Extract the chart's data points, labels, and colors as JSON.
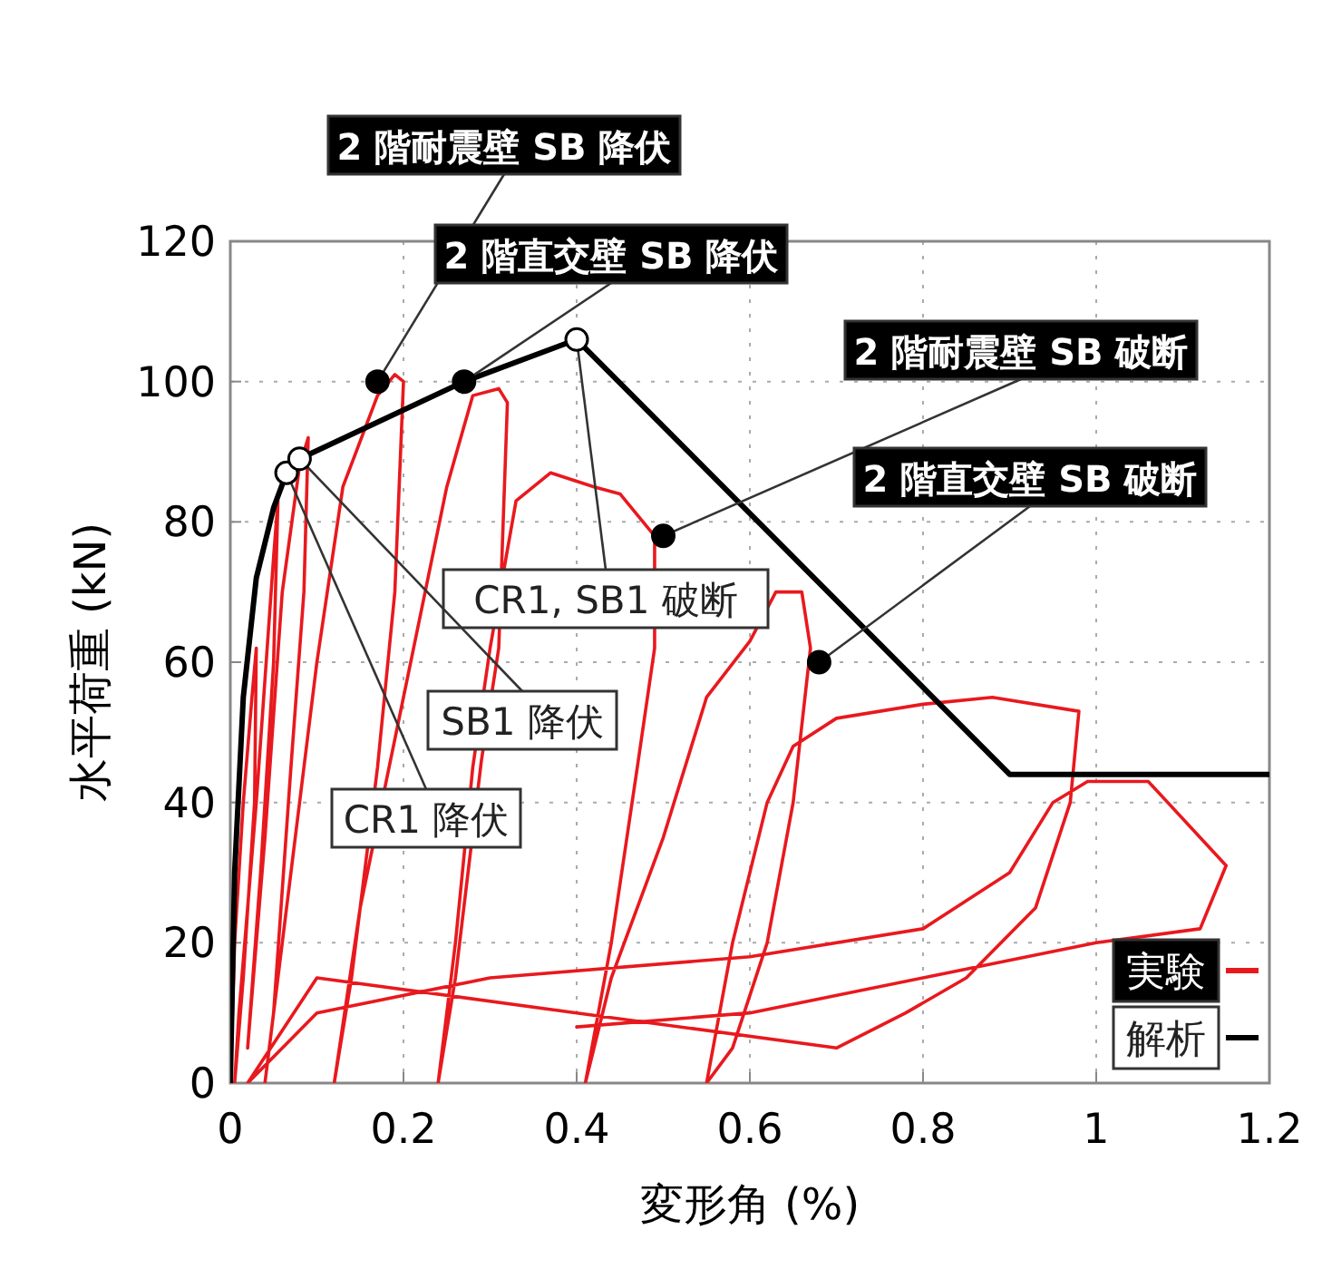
{
  "chart_data": {
    "type": "line",
    "xlabel": "変形角 (%)",
    "ylabel": "水平荷重 (kN)",
    "xlim": [
      0,
      1.2
    ],
    "ylim": [
      0,
      120
    ],
    "xticks": [
      0,
      0.2,
      0.4,
      0.6,
      0.8,
      1,
      1.2
    ],
    "yticks": [
      0,
      20,
      40,
      60,
      80,
      100,
      120
    ],
    "grid": true,
    "legend": "bottom right",
    "series": [
      {
        "name": "実験",
        "color": "#e8191e",
        "x": [
          0,
          0.005,
          0.015,
          0.025,
          0.03,
          0.028,
          0.015,
          0.005,
          0.01,
          0.03,
          0.05,
          0.055,
          0.05,
          0.035,
          0.02,
          0.04,
          0.06,
          0.08,
          0.09,
          0.085,
          0.07,
          0.05,
          0.04,
          0.07,
          0.1,
          0.13,
          0.17,
          0.19,
          0.2,
          0.19,
          0.17,
          0.14,
          0.12,
          0.15,
          0.2,
          0.25,
          0.28,
          0.31,
          0.32,
          0.31,
          0.29,
          0.26,
          0.24,
          0.26,
          0.28,
          0.3,
          0.33,
          0.37,
          0.42,
          0.45,
          0.49,
          0.49,
          0.47,
          0.44,
          0.41,
          0.44,
          0.5,
          0.55,
          0.6,
          0.63,
          0.66,
          0.67,
          0.65,
          0.62,
          0.58,
          0.55,
          0.58,
          0.62,
          0.65,
          0.7,
          0.8,
          0.88,
          0.98,
          0.97,
          0.93,
          0.85,
          0.78,
          0.7,
          0.4,
          0.1,
          0.02,
          0.1,
          0.3,
          0.6,
          0.8,
          0.9,
          0.95,
          0.99,
          1.06,
          1.15,
          1.12,
          1,
          0.8,
          0.6,
          0.4
        ],
        "values": [
          0,
          20,
          40,
          55,
          62,
          40,
          15,
          0,
          10,
          40,
          75,
          83,
          60,
          30,
          5,
          35,
          70,
          88,
          92,
          70,
          45,
          10,
          0,
          30,
          60,
          85,
          98,
          101,
          100,
          70,
          45,
          15,
          0,
          25,
          55,
          85,
          98,
          99,
          97,
          62,
          46,
          15,
          0,
          20,
          45,
          62,
          83,
          87,
          85,
          84,
          78,
          62,
          45,
          20,
          0,
          15,
          35,
          55,
          63,
          70,
          70,
          62,
          40,
          20,
          5,
          0,
          20,
          40,
          48,
          52,
          54,
          55,
          53,
          40,
          25,
          15,
          10,
          5,
          10,
          15,
          0,
          10,
          15,
          18,
          22,
          30,
          40,
          43,
          43,
          31,
          22,
          20,
          15,
          10,
          8
        ]
      },
      {
        "name": "解析",
        "color": "#000000",
        "x": [
          0,
          0.005,
          0.015,
          0.03,
          0.05,
          0.065,
          0.08,
          0.27,
          0.4,
          0.9,
          1.2
        ],
        "values": [
          0,
          30,
          55,
          72,
          82,
          87,
          89,
          100,
          106,
          44,
          44
        ]
      },
      {
        "type": "scatter",
        "color": "#000000",
        "x": [
          0.17,
          0.27,
          0.5,
          0.68
        ],
        "values": [
          100,
          100,
          78,
          60
        ]
      },
      {
        "type": "scatter",
        "color": "#ffffff",
        "x": [
          0.065,
          0.08,
          0.4
        ],
        "values": [
          87,
          89,
          106
        ]
      }
    ],
    "annotations": [
      {
        "text": "2 階耐震壁 SB 降伏",
        "x": 0.17,
        "y": 100
      },
      {
        "text": "2 階直交壁 SB 降伏",
        "x": 0.27,
        "y": 100
      },
      {
        "text": "2 階耐震壁 SB 破断",
        "x": 0.5,
        "y": 78
      },
      {
        "text": "2 階直交壁 SB 破断",
        "x": 0.68,
        "y": 60
      },
      {
        "text": "CR1, SB1 破断",
        "x": 0.4,
        "y": 106
      },
      {
        "text": "SB1 降伏",
        "x": 0.08,
        "y": 89
      },
      {
        "text": "CR1 降伏",
        "x": 0.065,
        "y": 87
      }
    ]
  }
}
